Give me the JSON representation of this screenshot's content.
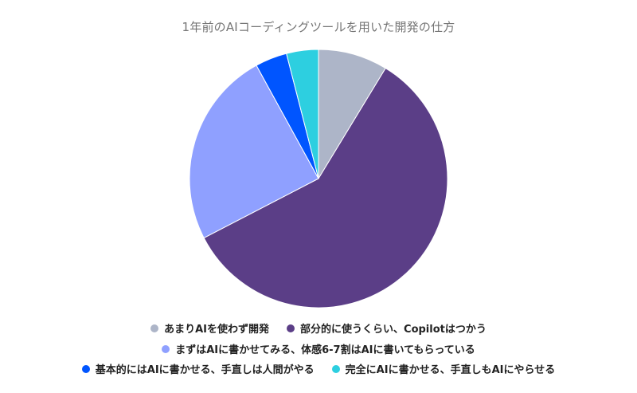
{
  "chart_data": {
    "type": "pie",
    "title": "1年前のAIコーディングツールを用いた開発の仕方",
    "slices": [
      {
        "label": "あまりAIを使わず開発",
        "value": 8.7,
        "color": "#adb5c8"
      },
      {
        "label": "部分的に使うくらい、Copilotはつかう",
        "value": 58.7,
        "color": "#5b3e87"
      },
      {
        "label": "まずはAIに書かせてみる、体感6-7割はAIに書いてもらっている",
        "value": 24.6,
        "color": "#8fa0ff"
      },
      {
        "label": "基本的にはAIに書かせる、手直しは人間がやる",
        "value": 4.0,
        "color": "#0055ff"
      },
      {
        "label": "完全にAIに書かせる、手直しもAIにやらせる",
        "value": 4.0,
        "color": "#2dcfe0"
      }
    ],
    "legend_position": "bottom",
    "start_angle": "top",
    "direction": "clockwise"
  }
}
